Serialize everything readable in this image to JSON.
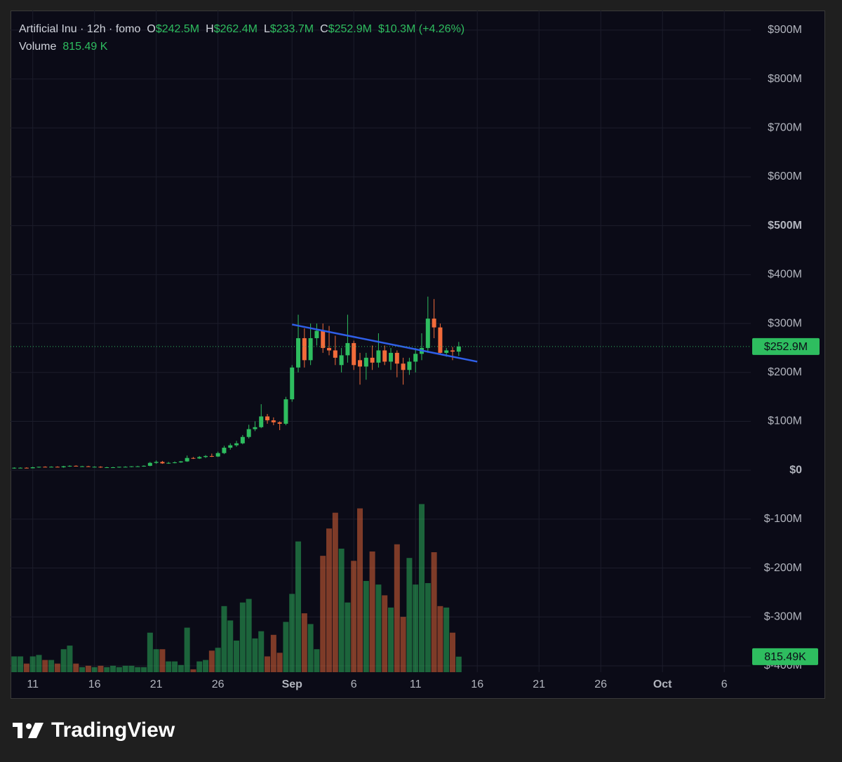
{
  "chart_data": {
    "type": "candlestick",
    "legend": {
      "title": "Artificial Inu · 12h · fomo",
      "fields": [
        {
          "key": "O",
          "value": "$242.5M"
        },
        {
          "key": "H",
          "value": "$262.4M"
        },
        {
          "key": "L",
          "value": "$233.7M"
        },
        {
          "key": "C",
          "value": "$252.9M"
        }
      ],
      "change": "$10.3M (+4.26%)",
      "volume_label": "Volume",
      "volume_value": "815.49 K"
    },
    "up_color": "#2ebd5f",
    "down_color": "#f26b3a",
    "open": [
      4,
      5,
      5,
      4,
      6,
      7,
      6,
      7,
      6,
      8,
      9,
      8,
      8,
      7,
      7,
      6,
      6,
      6,
      7,
      7,
      8,
      8,
      9,
      15,
      17,
      14,
      15,
      16,
      18,
      25,
      24,
      27,
      29,
      28,
      35,
      46,
      51,
      55,
      68,
      84,
      88,
      110,
      102,
      98,
      95,
      145,
      210,
      270,
      225,
      270,
      285,
      250,
      245,
      215,
      235,
      260,
      225,
      212,
      230,
      220,
      245,
      222,
      240,
      218,
      205,
      222,
      238,
      250,
      310,
      292,
      240,
      245,
      242.5
    ],
    "high": [
      6,
      6,
      6,
      7,
      7,
      8,
      8,
      8,
      9,
      10,
      10,
      9,
      9,
      8,
      8,
      7,
      7,
      7,
      8,
      8,
      9,
      10,
      17,
      20,
      19,
      17,
      18,
      19,
      30,
      27,
      29,
      31,
      34,
      38,
      50,
      55,
      60,
      72,
      93,
      100,
      135,
      115,
      108,
      100,
      150,
      215,
      318,
      290,
      300,
      300,
      300,
      295,
      275,
      250,
      318,
      265,
      240,
      240,
      255,
      280,
      255,
      250,
      245,
      230,
      230,
      250,
      280,
      355,
      350,
      300,
      250,
      252,
      262.4
    ],
    "low": [
      3,
      4,
      4,
      4,
      5,
      6,
      6,
      6,
      5,
      7,
      8,
      7,
      7,
      6,
      5,
      5,
      5,
      5,
      6,
      6,
      7,
      7,
      8,
      13,
      13,
      13,
      14,
      15,
      17,
      23,
      23,
      25,
      27,
      27,
      33,
      42,
      48,
      53,
      65,
      80,
      86,
      95,
      92,
      82,
      92,
      140,
      200,
      210,
      215,
      255,
      240,
      235,
      215,
      200,
      220,
      205,
      175,
      185,
      205,
      210,
      215,
      205,
      190,
      175,
      195,
      200,
      225,
      240,
      270,
      238,
      232,
      225,
      233.7
    ],
    "close": [
      5,
      5,
      4,
      6,
      7,
      6,
      7,
      6,
      8,
      9,
      8,
      8,
      7,
      7,
      6,
      6,
      6,
      7,
      7,
      8,
      8,
      9,
      15,
      17,
      14,
      15,
      16,
      18,
      25,
      24,
      27,
      29,
      28,
      35,
      46,
      51,
      55,
      68,
      84,
      88,
      110,
      102,
      98,
      95,
      145,
      210,
      270,
      225,
      270,
      285,
      250,
      245,
      230,
      235,
      260,
      215,
      212,
      230,
      220,
      245,
      222,
      240,
      218,
      205,
      222,
      238,
      250,
      310,
      292,
      240,
      245,
      242.5,
      252.9
    ],
    "volume": {
      "values": [
        829,
        829,
        452,
        829,
        905,
        641,
        641,
        452,
        1206,
        1395,
        452,
        264,
        339,
        264,
        339,
        264,
        339,
        264,
        339,
        339,
        264,
        264,
        2074,
        1206,
        1206,
        566,
        566,
        377,
        2337,
        151,
        566,
        641,
        1131,
        1282,
        3468,
        2714,
        1659,
        3657,
        3845,
        1772,
        2149,
        829,
        1960,
        1018,
        2639,
        4109,
        6861,
        3091,
        2526,
        1206,
        6107,
        7540,
        8369,
        6484,
        3657,
        5844,
        8596,
        4788,
        6334,
        4599,
        4034,
        3393,
        6711,
        2903,
        5994,
        4599,
        8822,
        4675,
        6296,
        3468,
        3393,
        2074,
        815.49
      ],
      "ylim": [
        0,
        9500
      ],
      "last_label": "815.49K"
    },
    "last_price_label": "$252.9M",
    "trendline": {
      "color": "#2f5fe8",
      "points": [
        [
          45,
          298
        ],
        [
          75,
          222
        ]
      ]
    },
    "xlim": [
      -0.6,
      119.3
    ],
    "xticks": [
      {
        "value": 3,
        "label": "11"
      },
      {
        "value": 13,
        "label": "16"
      },
      {
        "value": 23,
        "label": "21"
      },
      {
        "value": 33,
        "label": "26"
      },
      {
        "value": 45,
        "label": "Sep"
      },
      {
        "value": 55,
        "label": "6"
      },
      {
        "value": 65,
        "label": "11"
      },
      {
        "value": 75,
        "label": "16"
      },
      {
        "value": 85,
        "label": "21"
      },
      {
        "value": 95,
        "label": "26"
      },
      {
        "value": 105,
        "label": "Oct"
      },
      {
        "value": 115,
        "label": "6"
      }
    ],
    "bold_xticks": [
      4,
      10
    ],
    "ylim": [
      -413,
      940
    ],
    "yticks": [
      {
        "value": -400,
        "label": "$-400M"
      },
      {
        "value": -300,
        "label": "$-300M"
      },
      {
        "value": -200,
        "label": "$-200M"
      },
      {
        "value": -100,
        "label": "$-100M"
      },
      {
        "value": 0,
        "label": "$0"
      },
      {
        "value": 100,
        "label": "$100M"
      },
      {
        "value": 200,
        "label": "$200M"
      },
      {
        "value": 300,
        "label": "$300M"
      },
      {
        "value": 400,
        "label": "$400M"
      },
      {
        "value": 500,
        "label": "$500M"
      },
      {
        "value": 600,
        "label": "$600M"
      },
      {
        "value": 700,
        "label": "$700M"
      },
      {
        "value": 800,
        "label": "$800M"
      },
      {
        "value": 900,
        "label": "$900M"
      }
    ],
    "bold_yticks": [
      4,
      9
    ],
    "grid": true
  },
  "footer": {
    "brand": "TradingView"
  }
}
